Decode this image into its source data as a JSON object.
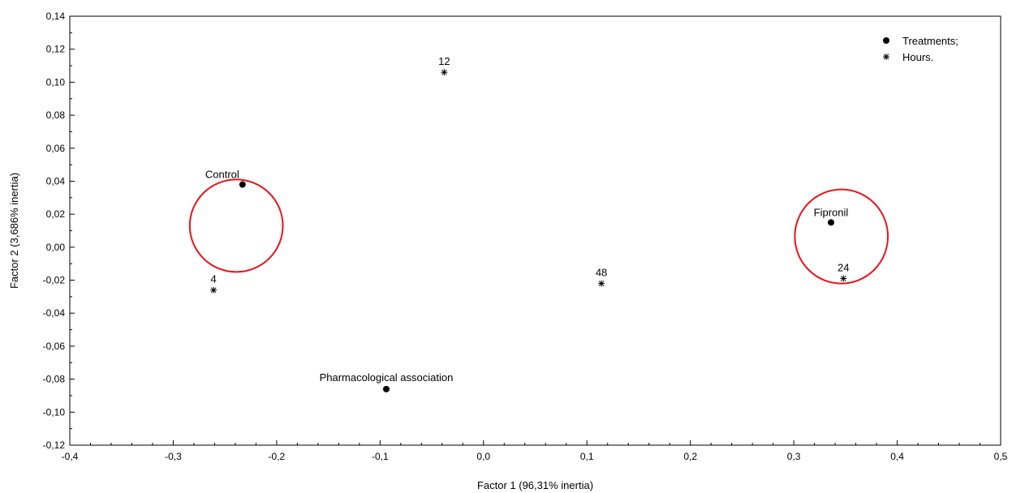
{
  "chart_data": {
    "type": "scatter",
    "xlabel": "Factor 1 (96,31% inertia)",
    "ylabel": "Factor 2 (3,686% inertia)",
    "xlim": [
      -0.4,
      0.5
    ],
    "ylim": [
      -0.12,
      0.14
    ],
    "x_ticks": [
      -0.4,
      -0.3,
      -0.2,
      -0.1,
      0.0,
      0.1,
      0.2,
      0.3,
      0.4,
      0.5
    ],
    "x_tick_labels": [
      "-0,4",
      "-0,3",
      "-0,2",
      "-0,1",
      "0,0",
      "0,1",
      "0,2",
      "0,3",
      "0,4",
      "0,5"
    ],
    "y_ticks": [
      -0.12,
      -0.1,
      -0.08,
      -0.06,
      -0.04,
      -0.02,
      0.0,
      0.02,
      0.04,
      0.06,
      0.08,
      0.1,
      0.12,
      0.14
    ],
    "y_tick_labels": [
      "-0,12",
      "-0,10",
      "-0,08",
      "-0,06",
      "-0,04",
      "-0,02",
      "0,00",
      "0,02",
      "0,04",
      "0,06",
      "0,08",
      "0,10",
      "0,12",
      "0,14"
    ],
    "grid": false,
    "legend": {
      "position": "top-right",
      "entries": [
        {
          "label": "Treatments;",
          "marker": "circle"
        },
        {
          "label": "Hours.",
          "marker": "star"
        }
      ]
    },
    "series": [
      {
        "name": "Treatments;",
        "marker": "circle",
        "points": [
          {
            "label": "Control",
            "x": -0.233,
            "y": 0.038
          },
          {
            "label": "Fipronil",
            "x": 0.336,
            "y": 0.015
          },
          {
            "label": "Pharmacological association",
            "x": -0.094,
            "y": -0.086
          }
        ]
      },
      {
        "name": "Hours.",
        "marker": "star",
        "points": [
          {
            "label": "4",
            "x": -0.261,
            "y": -0.026
          },
          {
            "label": "12",
            "x": -0.038,
            "y": 0.106
          },
          {
            "label": "24",
            "x": 0.348,
            "y": -0.019
          },
          {
            "label": "48",
            "x": 0.114,
            "y": -0.022
          }
        ]
      }
    ],
    "annotations": [
      {
        "shape": "ellipse",
        "color": "#e8141c",
        "center": [
          -0.239,
          0.013
        ],
        "radii": [
          0.045,
          0.028
        ]
      },
      {
        "shape": "ellipse",
        "color": "#e8141c",
        "center": [
          0.346,
          0.0065
        ],
        "radii": [
          0.045,
          0.0285
        ]
      }
    ]
  }
}
